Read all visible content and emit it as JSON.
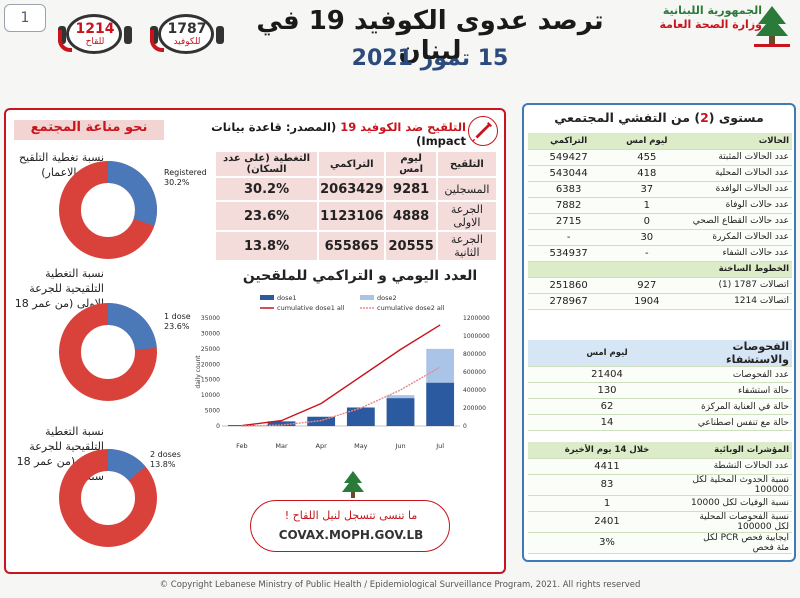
{
  "header": {
    "page_number": "1",
    "title": "ترصد عدوى الكوفيد 19 في لبنان",
    "date": "15 تموز 2021",
    "ministry": {
      "line1": "الجمهورية اللبنانية",
      "line2": "وزارة الصحة العامة"
    },
    "hotline_vaccine": {
      "number": "1214",
      "label": "للقاح"
    },
    "hotline_covid": {
      "number": "1787",
      "label": "للكوفيد"
    }
  },
  "community": {
    "title": "نحو مناعة المجتمع",
    "donuts": [
      {
        "label": "نسبة تغطية التلقيح (كافة الاعمار)",
        "legend": "Registered",
        "percent_text": "30.2%",
        "value": 30.2
      },
      {
        "label": "نسبة التغطية التلقيحية للجرعة الاولى (من عمر 18 سنة)",
        "legend": "1 dose",
        "percent_text": "23.6%",
        "value": 23.6
      },
      {
        "label": "نسبة التغطية التلقيحية للجرعة الثانية (من عمر 18 سنة)",
        "legend": "2 doses",
        "percent_text": "13.8%",
        "value": 13.8
      }
    ]
  },
  "vaccination": {
    "title_main": "التلقيح ضد الكوفيد 19",
    "title_source": "(المصدر: قاعدة بيانات Impact)",
    "columns": [
      "التلقيح",
      "ليوم امس",
      "التراكمي",
      "التغطية (على عدد السكان)"
    ],
    "rows": [
      {
        "name": "المسجلين",
        "yesterday": "9281",
        "cumulative": "2063429",
        "coverage": "30.2%"
      },
      {
        "name": "الجرعة الاولى",
        "yesterday": "4888",
        "cumulative": "1123106",
        "coverage": "23.6%"
      },
      {
        "name": "الجرعة الثانية",
        "yesterday": "20555",
        "cumulative": "655865",
        "coverage": "13.8%"
      }
    ]
  },
  "daily_chart": {
    "title": "العدد اليومي و التراكمي للملقحين",
    "legend": [
      "dose1",
      "dose2",
      "cumulative dose1 all",
      "cumulative dose2 all"
    ],
    "left_ticks": [
      "0",
      "5000",
      "10000",
      "15000",
      "20000",
      "25000",
      "30000",
      "35000"
    ],
    "right_ticks": [
      "0",
      "200000",
      "400000",
      "600000",
      "800000",
      "1000000",
      "1200000"
    ],
    "y_label": "daily count",
    "months": [
      "Feb",
      "Mar",
      "Apr",
      "May",
      "Jun",
      "Jul"
    ],
    "colors": {
      "dose1": "#2c5aa0",
      "dose2": "#a9c4e6",
      "cum1": "#c8141c",
      "cum2": "#e88a8a"
    }
  },
  "chart_data": {
    "type": "bar",
    "x": [
      "Feb",
      "Mar",
      "Apr",
      "May",
      "Jun",
      "Jul"
    ],
    "series": [
      {
        "name": "dose1",
        "values": [
          300,
          1500,
          3000,
          6000,
          9000,
          14000
        ]
      },
      {
        "name": "dose2",
        "values": [
          0,
          500,
          2000,
          5000,
          10000,
          25000
        ]
      },
      {
        "name": "cumulative dose1 all",
        "values": [
          5000,
          60000,
          250000,
          550000,
          850000,
          1123106
        ]
      },
      {
        "name": "cumulative dose2 all",
        "values": [
          0,
          10000,
          60000,
          200000,
          400000,
          655865
        ]
      }
    ],
    "ylim": [
      0,
      35000
    ],
    "y2lim": [
      0,
      1200000
    ]
  },
  "covax": {
    "line1": "ما تنسى تتسجل لنيل اللقاح !",
    "line2": "COVAX.MOPH.GOV.LB"
  },
  "level": {
    "prefix": "مستوى (",
    "number": "2",
    "suffix": ") من التفشي المجتمعي"
  },
  "cases": {
    "header": [
      "الحالات",
      "ليوم امس",
      "التراكمي"
    ],
    "rows": [
      {
        "label": "عدد الحالات المثبتة",
        "yesterday": "455",
        "total": "549427"
      },
      {
        "label": "عدد الحالات المحلية",
        "yesterday": "418",
        "total": "543044"
      },
      {
        "label": "عدد الحالات الوافدة",
        "yesterday": "37",
        "total": "6383"
      },
      {
        "label": "عدد حالات الوفاة",
        "yesterday": "1",
        "total": "7882"
      },
      {
        "label": "عدد حالات القطاع الصحي",
        "yesterday": "0",
        "total": "2715"
      },
      {
        "label": "عدد الحالات المكررة",
        "yesterday": "30",
        "total": "-"
      },
      {
        "label": "عدد حالات الشفاء",
        "yesterday": "-",
        "total": "534937"
      }
    ]
  },
  "hotlines": {
    "header": "الخطوط الساخنة",
    "rows": [
      {
        "label": "اتصالات 1787 (1)",
        "yesterday": "927",
        "total": "251860"
      },
      {
        "label": "اتصالات 1214",
        "yesterday": "1904",
        "total": "278967"
      }
    ]
  },
  "hospital": {
    "header": "الفحوصات والاستشفاء",
    "header_col": "ليوم امس",
    "rows": [
      {
        "label": "عدد الفحوصات",
        "value": "21404"
      },
      {
        "label": "حالة استشفاء",
        "value": "130"
      },
      {
        "label": "حالة في العناية المركزة",
        "value": "62"
      },
      {
        "label": "حالة مع تنفس اصطناعي",
        "value": "14"
      }
    ]
  },
  "indicators": {
    "header": "المؤشرات الوبائية",
    "header_col": "خلال 14 يوم الأخيرة",
    "rows": [
      {
        "label": "عدد الحالات النشطة",
        "value": "4411"
      },
      {
        "label": "نسبة الحدوث المحلية لكل 100000",
        "value": "83"
      },
      {
        "label": "نسبة الوفيات لكل 10000",
        "value": "1"
      },
      {
        "label": "نسبة الفحوصات المحلية لكل 100000",
        "value": "2401"
      },
      {
        "label": "ايجابية فحص PCR لكل مئة فحص",
        "value": "3%"
      }
    ]
  },
  "footer": "© Copyright Lebanese Ministry of Public Health / Epidemiological Surveillance Program, 2021. All rights reserved"
}
